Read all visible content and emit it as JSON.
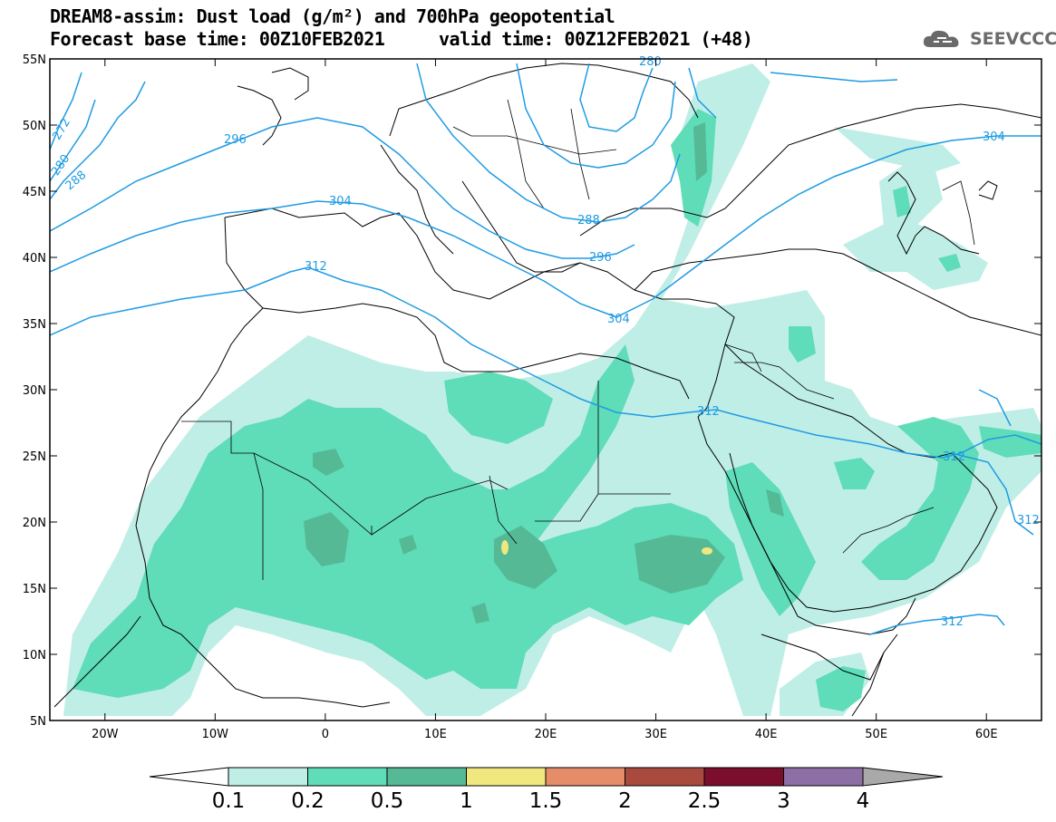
{
  "title": {
    "line1": "DREAM8-assim: Dust load (g/m²) and 700hPa geopotential",
    "line2": "Forecast base time: 00Z10FEB2021",
    "line2b": "valid time: 00Z12FEB2021 (+48)"
  },
  "logo": {
    "text": "SEEVCCC",
    "icon": "cloud-icon"
  },
  "map": {
    "lat_ticks": [
      "55N",
      "50N",
      "45N",
      "40N",
      "35N",
      "30N",
      "25N",
      "20N",
      "15N",
      "10N",
      "5N"
    ],
    "lon_ticks": [
      "20W",
      "10W",
      "0",
      "10E",
      "20E",
      "30E",
      "40E",
      "50E",
      "60E"
    ],
    "lat_range": [
      5,
      55
    ],
    "lon_range": [
      -25,
      65
    ],
    "contour_color": "#1f9be3",
    "contour_labels": [
      "272",
      "280",
      "288",
      "296",
      "304",
      "312",
      "280",
      "288",
      "296",
      "304",
      "304",
      "312",
      "312",
      "312",
      "312"
    ]
  },
  "colorbar": {
    "labels": [
      "0.1",
      "0.2",
      "0.5",
      "1",
      "1.5",
      "2",
      "2.5",
      "3",
      "4"
    ],
    "colors": [
      "#bfeee6",
      "#5fdcb8",
      "#55b996",
      "#f0e77e",
      "#e58d68",
      "#a84b3e",
      "#7a0e2c",
      "#8d6ea5",
      "#a9a9a9"
    ]
  }
}
